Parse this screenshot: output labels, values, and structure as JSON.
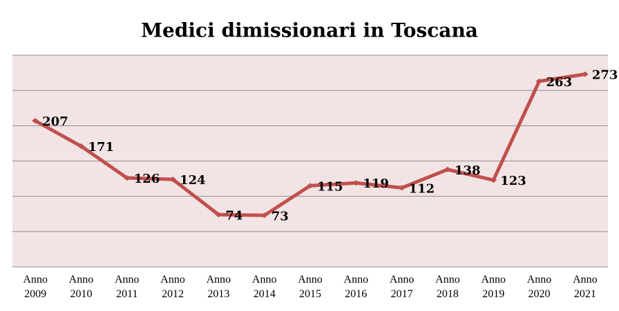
{
  "chart_data": {
    "type": "line",
    "title": "Medici dimissionari in Toscana",
    "categories": [
      "Anno 2009",
      "Anno 2010",
      "Anno 2011",
      "Anno 2012",
      "Anno 2013",
      "Anno 2014",
      "Anno 2015",
      "Anno 2016",
      "Anno 2017",
      "Anno 2018",
      "Anno 2019",
      "Anno 2020",
      "Anno 2021"
    ],
    "values": [
      207,
      171,
      126,
      124,
      74,
      73,
      115,
      119,
      112,
      138,
      123,
      263,
      273
    ],
    "color": "#c0504d",
    "background": "#f2e4e4",
    "ylim": [
      0,
      300
    ],
    "yticks": [
      0,
      50,
      100,
      150,
      200,
      250,
      300
    ],
    "ytick_labels_shown": false,
    "grid": true
  }
}
